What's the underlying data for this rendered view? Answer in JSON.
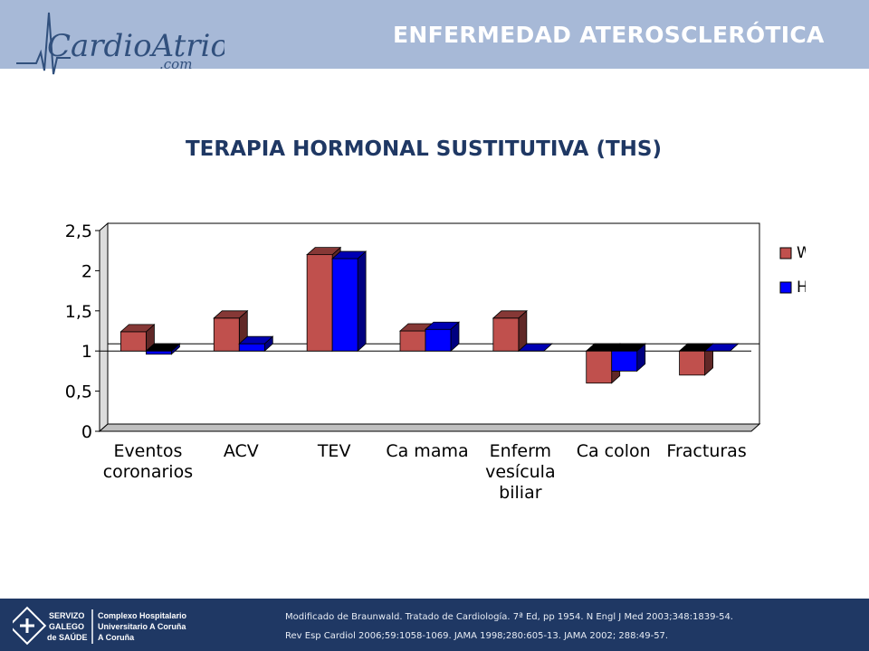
{
  "header": {
    "logo_text": "CardioAtrio",
    "logo_sub": ".com",
    "title": "ENFERMEDAD ATEROSCLERÓTICA"
  },
  "slide_title": "TERAPIA HORMONAL SUSTITUTIVA (THS)",
  "chart_data": {
    "type": "bar",
    "categories": [
      "Eventos coronarios",
      "ACV",
      "TEV",
      "Ca mama",
      "Enferm vesícula biliar",
      "Ca colon",
      "Fracturas"
    ],
    "series": [
      {
        "name": "WHI",
        "values": [
          1.24,
          1.41,
          2.2,
          1.25,
          1.41,
          0.6,
          0.7
        ],
        "color": "#c0504d"
      },
      {
        "name": "HERS",
        "values": [
          0.96,
          1.09,
          2.15,
          1.27,
          1.0,
          0.75,
          1.0
        ],
        "color": "#0000ff"
      }
    ],
    "baseline": 1,
    "ylim": [
      0,
      2.5
    ],
    "yticks": [
      0,
      0.5,
      1,
      1.5,
      2,
      2.5
    ],
    "ytick_labels": [
      "0",
      "0,5",
      "1",
      "1,5",
      "2",
      "2,5"
    ],
    "legend_position": "right",
    "grid": false
  },
  "footer": {
    "org_lines": [
      "SERVIZO",
      "GALEGO",
      "de SAÚDE"
    ],
    "hospital_lines": [
      "Complexo Hospitalario",
      "Universitario A Coruña",
      "A Coruña"
    ],
    "ref_line1": "Modificado  de Braunwald.  Tratado  de Cardiología.  7ª Ed, pp 1954.    N Engl J Med 2003;348:1839-54.",
    "ref_line2": "Rev Esp Cardiol  2006;59:1058-1069.     JAMA  1998;280:605-13.      JAMA  2002; 288:49-57."
  }
}
